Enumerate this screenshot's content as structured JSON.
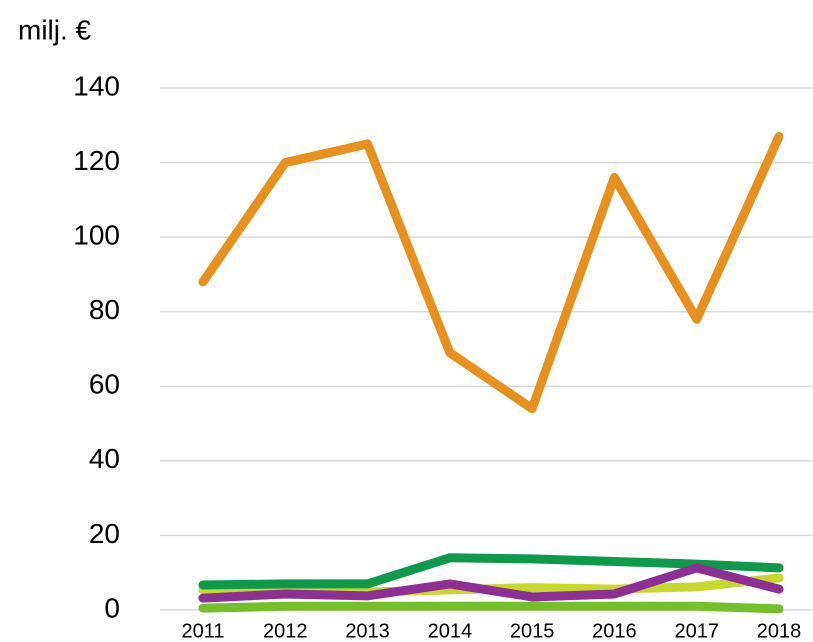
{
  "chart_data": {
    "type": "line",
    "y_label": "milj. €",
    "categories": [
      "2011",
      "2012",
      "2013",
      "2014",
      "2015",
      "2016",
      "2017",
      "2018"
    ],
    "series": [
      {
        "color": "#e8901e",
        "values": [
          88,
          120,
          125,
          69,
          54,
          116,
          78,
          127
        ]
      },
      {
        "color": "#c5d92c",
        "values": [
          5.4,
          5,
          4.8,
          5.4,
          6,
          5.6,
          6.2,
          8.6
        ]
      },
      {
        "color": "#74c02a",
        "values": [
          0.5,
          1,
          1,
          1,
          1,
          1,
          1,
          0.3
        ]
      },
      {
        "color": "#0e9a4b",
        "values": [
          6.7,
          7,
          7,
          14,
          13.7,
          13,
          12.3,
          11.3
        ]
      },
      {
        "color": "#8e2f96",
        "values": [
          3.2,
          4.3,
          3.8,
          7,
          3.5,
          4.3,
          11.3,
          5.6
        ]
      }
    ],
    "ylim": [
      0,
      140
    ],
    "yticks": [
      0,
      20,
      40,
      60,
      80,
      100,
      120,
      140
    ],
    "grid": true
  }
}
